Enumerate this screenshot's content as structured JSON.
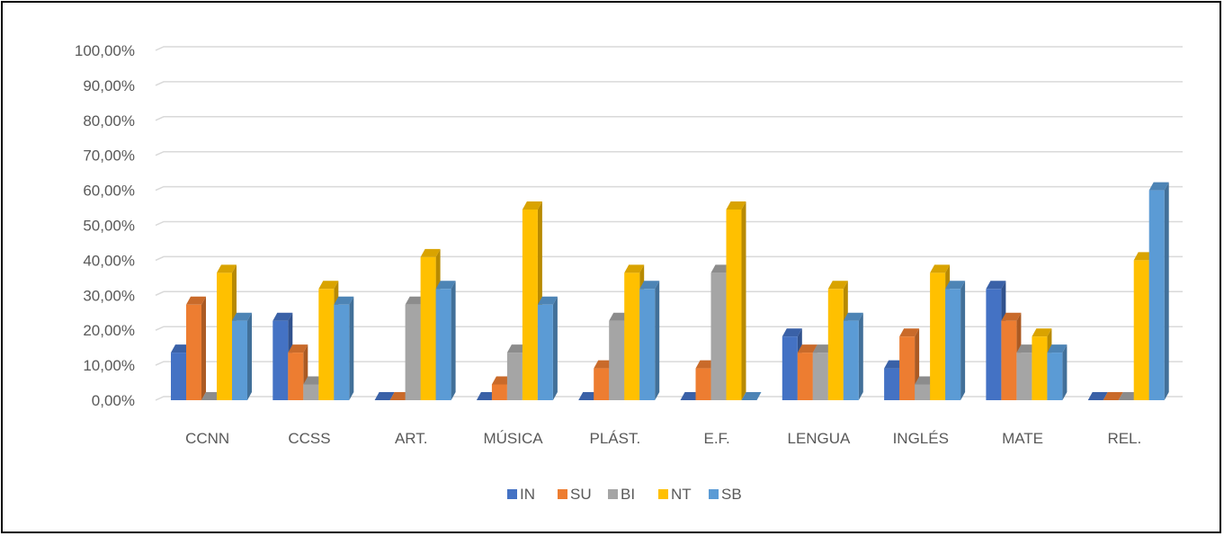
{
  "chart_data": {
    "type": "bar",
    "categories": [
      "CCNN",
      "CCSS",
      "ART.",
      "MÚSICA",
      "PLÁST.",
      "E.F.",
      "LENGUA",
      "INGLÉS",
      "MATE",
      "REL."
    ],
    "series": [
      {
        "name": "IN",
        "color": "#4472C4",
        "values": [
          13.6,
          22.7,
          0,
          0,
          0,
          0,
          18.2,
          9.1,
          31.8,
          0
        ]
      },
      {
        "name": "SU",
        "color": "#ED7D31",
        "values": [
          27.3,
          13.6,
          0,
          4.5,
          9.1,
          9.1,
          13.6,
          18.2,
          22.7,
          0
        ]
      },
      {
        "name": "BI",
        "color": "#A5A5A5",
        "values": [
          0,
          4.5,
          27.3,
          13.6,
          22.7,
          36.4,
          13.6,
          4.5,
          13.6,
          0
        ]
      },
      {
        "name": "NT",
        "color": "#FFC000",
        "values": [
          36.4,
          31.8,
          40.9,
          54.5,
          36.4,
          54.5,
          31.8,
          36.4,
          18.2,
          40.0
        ]
      },
      {
        "name": "SB",
        "color": "#5B9BD5",
        "values": [
          22.7,
          27.3,
          31.8,
          27.3,
          31.8,
          0,
          22.7,
          31.8,
          13.6,
          60.0
        ]
      }
    ],
    "y_ticks": [
      "0,00%",
      "10,00%",
      "20,00%",
      "30,00%",
      "40,00%",
      "50,00%",
      "60,00%",
      "70,00%",
      "80,00%",
      "90,00%",
      "100,00%"
    ],
    "ylim": [
      0,
      100
    ],
    "grid": true,
    "legend_position": "bottom",
    "title": "",
    "xlabel": "",
    "ylabel": ""
  }
}
